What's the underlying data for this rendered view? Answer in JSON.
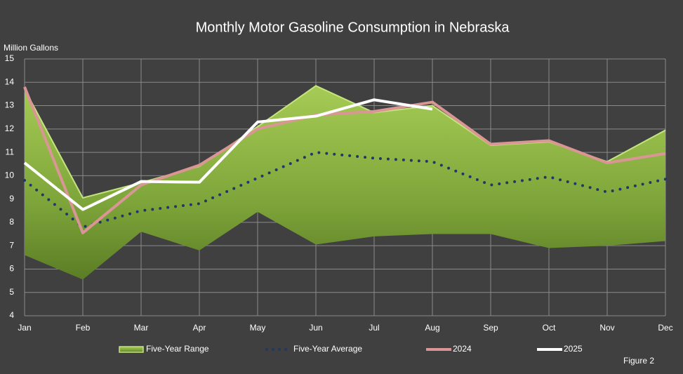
{
  "chart_data": {
    "type": "line",
    "title": "Monthly Motor Gasoline Consumption in Nebraska",
    "y_label": "Million Gallons",
    "note": "Figure 2",
    "categories": [
      "Jan",
      "Feb",
      "Mar",
      "Apr",
      "May",
      "Jun",
      "Jul",
      "Aug",
      "Sep",
      "Oct",
      "Nov",
      "Dec"
    ],
    "ylim": [
      4,
      15
    ],
    "yticks": [
      4,
      5,
      6,
      7,
      8,
      9,
      10,
      11,
      12,
      13,
      14,
      15
    ],
    "grid": true,
    "series": [
      {
        "name": "Five-Year Range",
        "type": "range",
        "color": "#8fb83e",
        "high": [
          13.7,
          9.05,
          9.7,
          10.4,
          12.1,
          13.85,
          12.7,
          13.0,
          11.3,
          11.45,
          10.6,
          11.95
        ],
        "low": [
          6.6,
          5.55,
          7.6,
          6.8,
          8.45,
          7.05,
          7.4,
          7.5,
          7.5,
          6.9,
          7.0,
          7.2
        ]
      },
      {
        "name": "Five-Year Average",
        "type": "dotted",
        "color": "#1f3864",
        "values": [
          9.8,
          7.8,
          8.5,
          8.8,
          9.9,
          11.0,
          10.75,
          10.6,
          9.6,
          9.95,
          9.3,
          9.85
        ]
      },
      {
        "name": "2024",
        "type": "line",
        "color": "#d99694",
        "values": [
          13.8,
          7.55,
          9.6,
          10.45,
          12.0,
          12.6,
          12.75,
          13.15,
          11.35,
          11.5,
          10.55,
          10.95
        ]
      },
      {
        "name": "2025",
        "type": "line",
        "color": "#ffffff",
        "values": [
          10.55,
          8.55,
          9.75,
          9.72,
          12.3,
          12.55,
          13.25,
          12.85,
          null,
          null,
          null,
          null
        ]
      }
    ]
  }
}
